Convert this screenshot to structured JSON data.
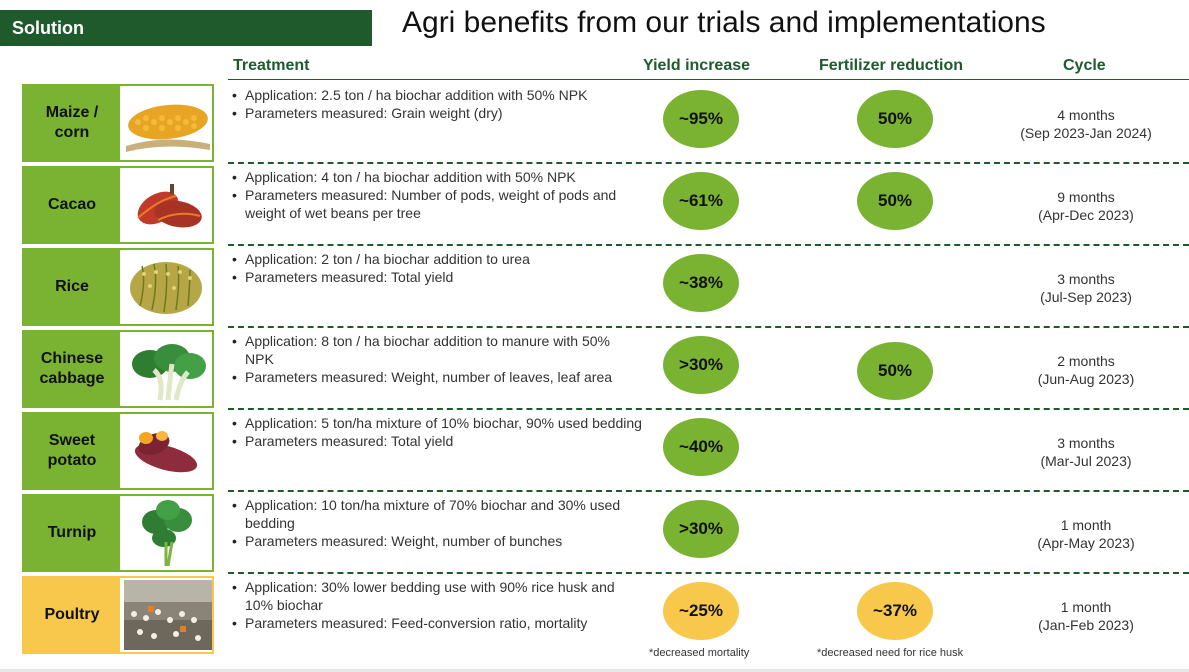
{
  "header": {
    "badge": "Solution",
    "title": "Agri benefits from our trials and implementations"
  },
  "columns": {
    "treatment": "Treatment",
    "yield": "Yield increase",
    "fertilizer": "Fertilizer reduction",
    "cycle": "Cycle"
  },
  "rows": [
    {
      "crop": "Maize / corn",
      "icon": "corn-icon",
      "treatment": [
        "Application: 2.5 ton / ha biochar addition with 50% NPK",
        "Parameters measured: Grain weight (dry)"
      ],
      "yield": "~95%",
      "fertilizer": "50%",
      "cycle_duration": "4 months",
      "cycle_period": "(Sep 2023-Jan 2024)",
      "color": "#7ab232"
    },
    {
      "crop": "Cacao",
      "icon": "cacao-icon",
      "treatment": [
        "Application: 4 ton / ha biochar addition with 50% NPK",
        "Parameters measured: Number of pods, weight of pods and weight of wet beans per tree"
      ],
      "yield": "~61%",
      "fertilizer": "50%",
      "cycle_duration": "9 months",
      "cycle_period": "(Apr-Dec 2023)",
      "color": "#7ab232"
    },
    {
      "crop": "Rice",
      "icon": "rice-icon",
      "treatment": [
        "Application: 2 ton / ha biochar addition to urea",
        "Parameters measured: Total yield"
      ],
      "yield": "~38%",
      "fertilizer": "",
      "cycle_duration": "3 months",
      "cycle_period": "(Jul-Sep 2023)",
      "color": "#7ab232"
    },
    {
      "crop": "Chinese cabbage",
      "icon": "cabbage-icon",
      "treatment": [
        "Application: 8 ton / ha biochar addition to manure with 50% NPK",
        "Parameters measured: Weight, number of leaves, leaf area"
      ],
      "yield": ">30%",
      "fertilizer": "50%",
      "cycle_duration": "2 months",
      "cycle_period": "(Jun-Aug 2023)",
      "color": "#7ab232"
    },
    {
      "crop": "Sweet potato",
      "icon": "sweet-potato-icon",
      "treatment": [
        "Application: 5 ton/ha mixture of 10% biochar, 90% used bedding",
        "Parameters measured: Total yield"
      ],
      "yield": "~40%",
      "fertilizer": "",
      "cycle_duration": "3 months",
      "cycle_period": "(Mar-Jul 2023)",
      "color": "#7ab232"
    },
    {
      "crop": "Turnip",
      "icon": "turnip-icon",
      "treatment": [
        "Application: 10 ton/ha mixture of 70% biochar and 30% used bedding",
        "Parameters measured: Weight, number of bunches"
      ],
      "yield": ">30%",
      "fertilizer": "",
      "cycle_duration": "1 month",
      "cycle_period": "(Apr-May 2023)",
      "color": "#7ab232"
    },
    {
      "crop": "Poultry",
      "icon": "poultry-farm-icon",
      "treatment": [
        "Application: 30% lower bedding use with 90% rice husk and 10% biochar",
        "Parameters measured: Feed-conversion ratio, mortality"
      ],
      "yield": "~25%",
      "fertilizer": "~37%",
      "cycle_duration": "1 month",
      "cycle_period": "(Jan-Feb 2023)",
      "color": "#f7c84b"
    }
  ],
  "notes": {
    "yield": "*decreased mortality",
    "fertilizer": "*decreased need for rice husk"
  }
}
